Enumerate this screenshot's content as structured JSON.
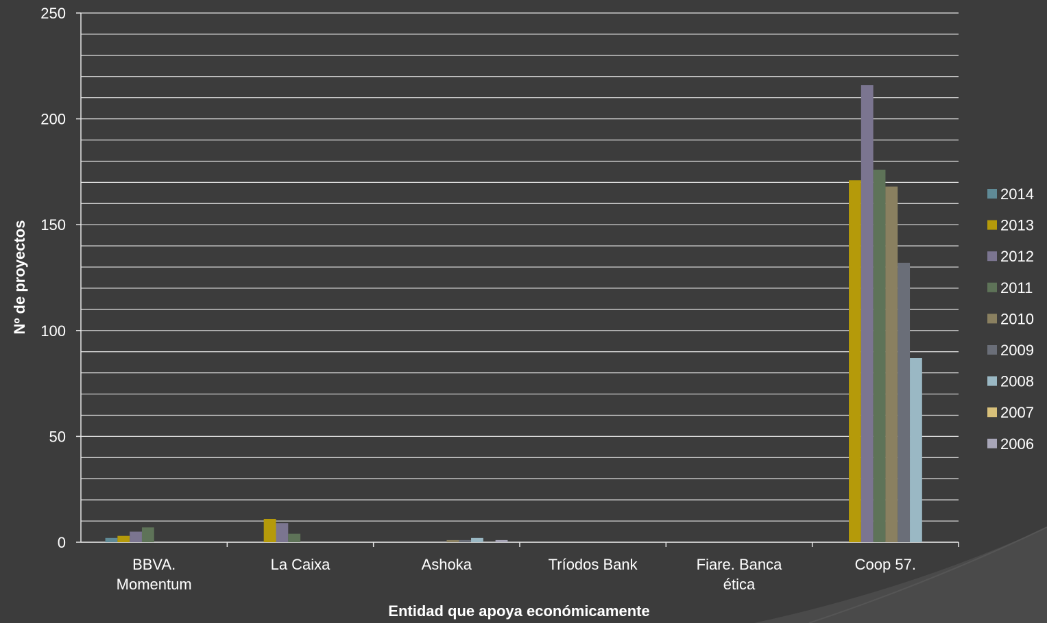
{
  "chart_data": {
    "type": "bar",
    "title": "",
    "xlabel": "Entidad que apoya económicamente",
    "ylabel": "Nº de proyectos",
    "ylim": [
      0,
      250
    ],
    "y_ticks": [
      0,
      50,
      100,
      150,
      200,
      250
    ],
    "grid": true,
    "legend_position": "right",
    "categories": [
      [
        "BBVA.",
        "Momentum"
      ],
      [
        "La Caixa"
      ],
      [
        "Ashoka"
      ],
      [
        "Tríodos Bank"
      ],
      [
        "Fiare. Banca",
        "ética"
      ],
      [
        "Coop 57."
      ]
    ],
    "series": [
      {
        "name": "2014",
        "color": "#5f8a96",
        "values": [
          2,
          0,
          0,
          0,
          0,
          0
        ]
      },
      {
        "name": "2013",
        "color": "#b59a0a",
        "values": [
          3,
          11,
          0,
          0,
          0,
          171
        ]
      },
      {
        "name": "2012",
        "color": "#7b7590",
        "values": [
          5,
          9,
          0,
          0,
          0,
          216
        ]
      },
      {
        "name": "2011",
        "color": "#5e7358",
        "values": [
          7,
          4,
          0,
          0,
          0,
          176
        ]
      },
      {
        "name": "2010",
        "color": "#8a8060",
        "values": [
          0,
          0,
          1,
          0,
          0,
          168
        ]
      },
      {
        "name": "2009",
        "color": "#6a6e78",
        "values": [
          0,
          0,
          1,
          0,
          0,
          132
        ]
      },
      {
        "name": "2008",
        "color": "#9ab8c4",
        "values": [
          0,
          0,
          2,
          0,
          0,
          87
        ]
      },
      {
        "name": "2007",
        "color": "#d8c07a",
        "values": [
          0,
          0,
          0,
          0,
          0,
          0
        ]
      },
      {
        "name": "2006",
        "color": "#a8a6b8",
        "values": [
          0,
          0,
          1,
          0,
          0,
          0
        ]
      }
    ]
  }
}
